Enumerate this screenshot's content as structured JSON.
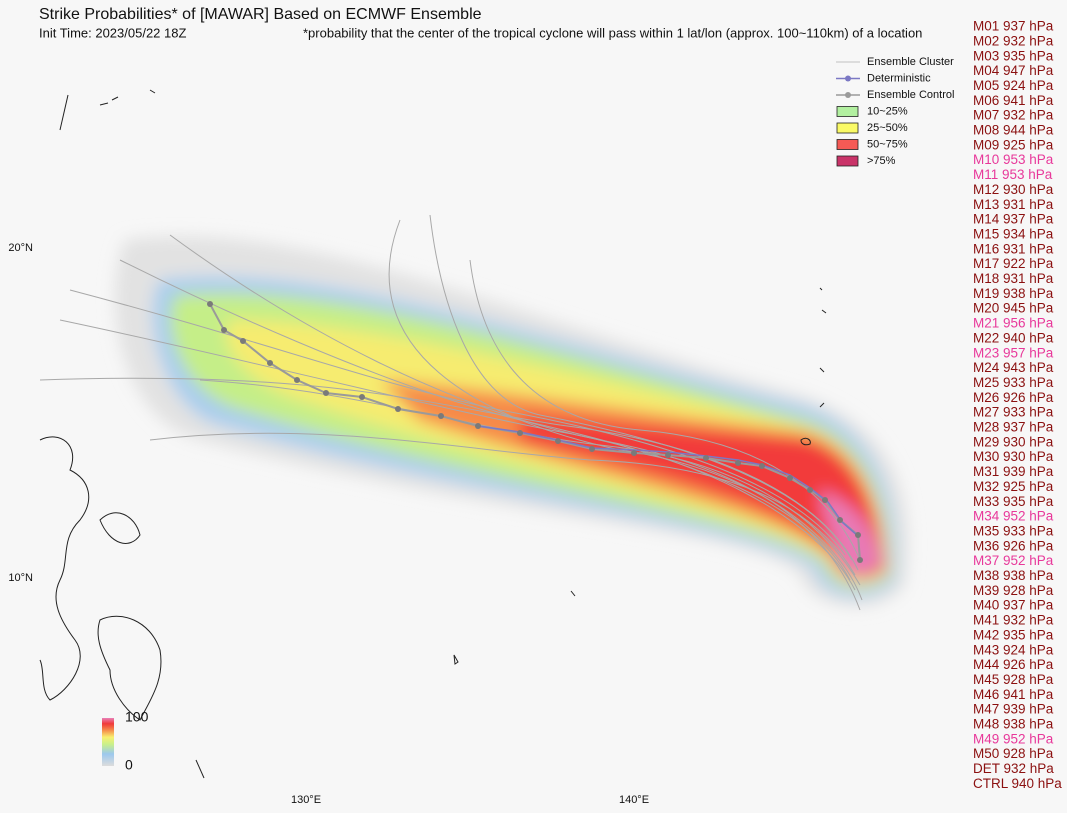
{
  "header": {
    "title": "Strike Probabilities* of [MAWAR] Based on ECMWF Ensemble",
    "init_time": "Init Time: 2023/05/22 18Z",
    "note": "*probability that the center of the tropical cyclone will pass within 1 lat/lon (approx. 100~110km) of a location"
  },
  "legend": [
    {
      "label": "Ensemble Cluster",
      "kind": "line",
      "color": "#c0c0c0"
    },
    {
      "label": "Deterministic",
      "kind": "marker-line",
      "color": "#7b78c4"
    },
    {
      "label": "Ensemble Control",
      "kind": "marker-line",
      "color": "#9a9a9a"
    },
    {
      "label": "10~25%",
      "kind": "box",
      "color": "#b2f0a0"
    },
    {
      "label": "25~50%",
      "kind": "box",
      "color": "#fafa66"
    },
    {
      "label": "50~75%",
      "kind": "box",
      "color": "#f55a55"
    },
    {
      "label": ">75%",
      "kind": "box",
      "color": "#c93368"
    }
  ],
  "colorbar": {
    "ticks": [
      0,
      100
    ]
  },
  "lat_ticks": [
    {
      "value": 20,
      "label": "20°N"
    },
    {
      "value": 10,
      "label": "10°N"
    }
  ],
  "lon_ticks": [
    {
      "value": 130,
      "label": "130°E"
    },
    {
      "value": 140,
      "label": "140°E"
    }
  ],
  "members": [
    {
      "label": "M01 937 hPa",
      "color": "#8b1010"
    },
    {
      "label": "M02 932 hPa",
      "color": "#8b1010"
    },
    {
      "label": "M03 935 hPa",
      "color": "#8b1010"
    },
    {
      "label": "M04 947 hPa",
      "color": "#8b1010"
    },
    {
      "label": "M05 924 hPa",
      "color": "#8b1010"
    },
    {
      "label": "M06 941 hPa",
      "color": "#8b1010"
    },
    {
      "label": "M07 932 hPa",
      "color": "#8b1010"
    },
    {
      "label": "M08 944 hPa",
      "color": "#8b1010"
    },
    {
      "label": "M09 925 hPa",
      "color": "#8b1010"
    },
    {
      "label": "M10 953 hPa",
      "color": "#e8389a"
    },
    {
      "label": "M11 953 hPa",
      "color": "#e8389a"
    },
    {
      "label": "M12 930 hPa",
      "color": "#8b1010"
    },
    {
      "label": "M13 931 hPa",
      "color": "#8b1010"
    },
    {
      "label": "M14 937 hPa",
      "color": "#8b1010"
    },
    {
      "label": "M15 934 hPa",
      "color": "#8b1010"
    },
    {
      "label": "M16 931 hPa",
      "color": "#8b1010"
    },
    {
      "label": "M17 922 hPa",
      "color": "#8b1010"
    },
    {
      "label": "M18 931 hPa",
      "color": "#8b1010"
    },
    {
      "label": "M19 938 hPa",
      "color": "#8b1010"
    },
    {
      "label": "M20 945 hPa",
      "color": "#8b1010"
    },
    {
      "label": "M21 956 hPa",
      "color": "#e8389a"
    },
    {
      "label": "M22 940 hPa",
      "color": "#8b1010"
    },
    {
      "label": "M23 957 hPa",
      "color": "#e8389a"
    },
    {
      "label": "M24 943 hPa",
      "color": "#8b1010"
    },
    {
      "label": "M25 933 hPa",
      "color": "#8b1010"
    },
    {
      "label": "M26 926 hPa",
      "color": "#8b1010"
    },
    {
      "label": "M27 933 hPa",
      "color": "#8b1010"
    },
    {
      "label": "M28 937 hPa",
      "color": "#8b1010"
    },
    {
      "label": "M29 930 hPa",
      "color": "#8b1010"
    },
    {
      "label": "M30 930 hPa",
      "color": "#8b1010"
    },
    {
      "label": "M31 939 hPa",
      "color": "#8b1010"
    },
    {
      "label": "M32 925 hPa",
      "color": "#8b1010"
    },
    {
      "label": "M33 935 hPa",
      "color": "#8b1010"
    },
    {
      "label": "M34 952 hPa",
      "color": "#e8389a"
    },
    {
      "label": "M35 933 hPa",
      "color": "#8b1010"
    },
    {
      "label": "M36 926 hPa",
      "color": "#8b1010"
    },
    {
      "label": "M37 952 hPa",
      "color": "#e8389a"
    },
    {
      "label": "M38 938 hPa",
      "color": "#8b1010"
    },
    {
      "label": "M39 928 hPa",
      "color": "#8b1010"
    },
    {
      "label": "M40 937 hPa",
      "color": "#8b1010"
    },
    {
      "label": "M41 932 hPa",
      "color": "#8b1010"
    },
    {
      "label": "M42 935 hPa",
      "color": "#8b1010"
    },
    {
      "label": "M43 924 hPa",
      "color": "#8b1010"
    },
    {
      "label": "M44 926 hPa",
      "color": "#8b1010"
    },
    {
      "label": "M45 928 hPa",
      "color": "#8b1010"
    },
    {
      "label": "M46 941 hPa",
      "color": "#8b1010"
    },
    {
      "label": "M47 939 hPa",
      "color": "#8b1010"
    },
    {
      "label": "M48 938 hPa",
      "color": "#8b1010"
    },
    {
      "label": "M49 952 hPa",
      "color": "#e8389a"
    },
    {
      "label": "M50 928 hPa",
      "color": "#8b1010"
    },
    {
      "label": "DET 932 hPa",
      "color": "#8b1010"
    },
    {
      "label": "CTRL 940 hPa",
      "color": "#8b1010"
    }
  ]
}
